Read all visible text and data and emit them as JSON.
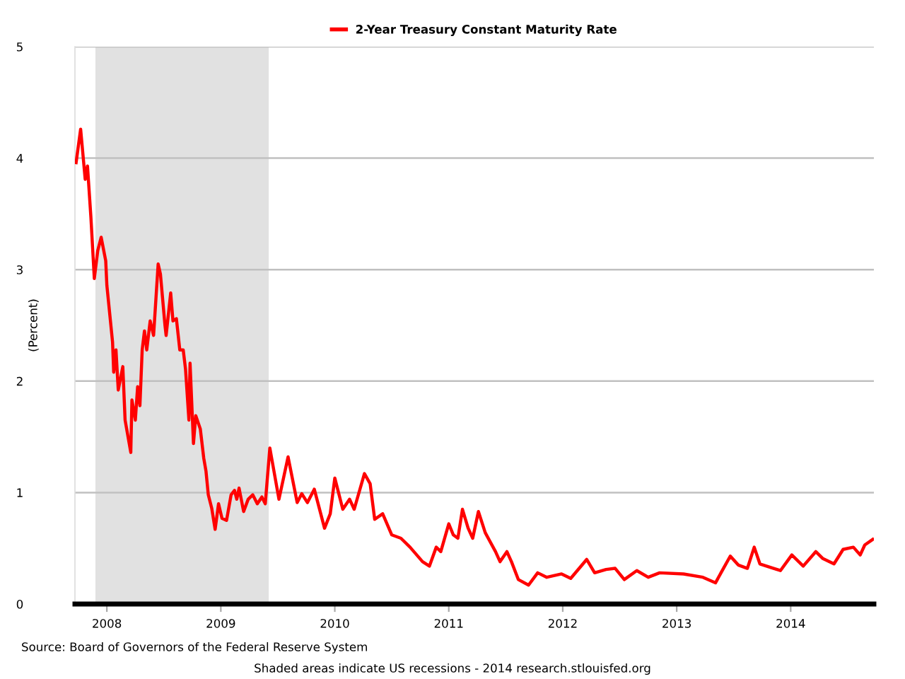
{
  "chart_data": {
    "type": "line",
    "ylabel": "(Percent)",
    "annotations": [
      "Source: Board of Governors of the Federal Reserve System",
      "Shaded areas indicate US recessions - 2014 research.stlouisfed.org"
    ],
    "x": [
      2007.73,
      2007.77,
      2007.81,
      2007.83,
      2007.86,
      2007.89,
      2007.92,
      2007.95,
      2007.99,
      2008.0,
      2008.05,
      2008.06,
      2008.08,
      2008.1,
      2008.14,
      2008.16,
      2008.21,
      2008.22,
      2008.25,
      2008.27,
      2008.29,
      2008.31,
      2008.33,
      2008.35,
      2008.38,
      2008.41,
      2008.45,
      2008.47,
      2008.51,
      2008.52,
      2008.56,
      2008.58,
      2008.61,
      2008.64,
      2008.67,
      2008.69,
      2008.72,
      2008.73,
      2008.76,
      2008.78,
      2008.82,
      2008.85,
      2008.87,
      2008.89,
      2008.92,
      2008.95,
      2008.98,
      2009.01,
      2009.05,
      2009.09,
      2009.12,
      2009.14,
      2009.16,
      2009.2,
      2009.24,
      2009.28,
      2009.32,
      2009.36,
      2009.39,
      2009.43,
      2009.51,
      2009.59,
      2009.67,
      2009.71,
      2009.76,
      2009.82,
      2009.91,
      2009.96,
      2010.0,
      2010.07,
      2010.13,
      2010.17,
      2010.26,
      2010.31,
      2010.35,
      2010.42,
      2010.5,
      2010.58,
      2010.66,
      2010.77,
      2010.83,
      2010.89,
      2010.93,
      2011.0,
      2011.04,
      2011.08,
      2011.12,
      2011.17,
      2011.21,
      2011.26,
      2011.32,
      2011.41,
      2011.45,
      2011.51,
      2011.55,
      2011.61,
      2011.7,
      2011.78,
      2011.86,
      2011.99,
      2012.07,
      2012.21,
      2012.28,
      2012.38,
      2012.46,
      2012.54,
      2012.65,
      2012.75,
      2012.85,
      2013.06,
      2013.23,
      2013.34,
      2013.41,
      2013.47,
      2013.54,
      2013.62,
      2013.68,
      2013.73,
      2013.85,
      2013.91,
      2014.01,
      2014.11,
      2014.22,
      2014.28,
      2014.38,
      2014.46,
      2014.55,
      2014.61,
      2014.65,
      2014.72
    ],
    "series": [
      {
        "name": "2-Year Treasury Constant Maturity Rate",
        "color": "#ff0000",
        "values": [
          3.96,
          4.26,
          3.81,
          3.93,
          3.47,
          2.92,
          3.17,
          3.29,
          3.08,
          2.86,
          2.35,
          2.08,
          2.28,
          1.92,
          2.13,
          1.65,
          1.36,
          1.83,
          1.65,
          1.95,
          1.78,
          2.28,
          2.45,
          2.28,
          2.54,
          2.41,
          3.05,
          2.96,
          2.5,
          2.41,
          2.79,
          2.54,
          2.56,
          2.28,
          2.28,
          2.11,
          1.65,
          2.16,
          1.44,
          1.69,
          1.57,
          1.31,
          1.19,
          0.98,
          0.86,
          0.67,
          0.9,
          0.77,
          0.75,
          0.98,
          1.02,
          0.94,
          1.04,
          0.83,
          0.94,
          0.98,
          0.9,
          0.96,
          0.9,
          1.4,
          0.94,
          1.32,
          0.91,
          0.99,
          0.91,
          1.03,
          0.68,
          0.81,
          1.13,
          0.85,
          0.94,
          0.85,
          1.17,
          1.08,
          0.76,
          0.81,
          0.62,
          0.59,
          0.51,
          0.38,
          0.34,
          0.51,
          0.47,
          0.72,
          0.62,
          0.59,
          0.85,
          0.68,
          0.59,
          0.83,
          0.64,
          0.47,
          0.38,
          0.47,
          0.38,
          0.22,
          0.17,
          0.28,
          0.24,
          0.27,
          0.23,
          0.4,
          0.28,
          0.31,
          0.32,
          0.22,
          0.3,
          0.24,
          0.28,
          0.27,
          0.24,
          0.19,
          0.32,
          0.43,
          0.35,
          0.32,
          0.51,
          0.36,
          0.32,
          0.3,
          0.44,
          0.34,
          0.47,
          0.41,
          0.36,
          0.49,
          0.51,
          0.44,
          0.53,
          0.58
        ]
      }
    ],
    "xlim": [
      2007.72,
      2014.73
    ],
    "ylim": [
      0,
      5
    ],
    "xticks": [
      2008,
      2009,
      2010,
      2011,
      2012,
      2013,
      2014
    ],
    "yticks": [
      0,
      1,
      2,
      3,
      4,
      5
    ],
    "bands": [
      {
        "axis": "x",
        "from": 2007.9,
        "to": 2009.42,
        "color": "#e1e1e1"
      }
    ],
    "grid": "y",
    "legend": "top",
    "marker": "none",
    "line_style": "solid"
  }
}
